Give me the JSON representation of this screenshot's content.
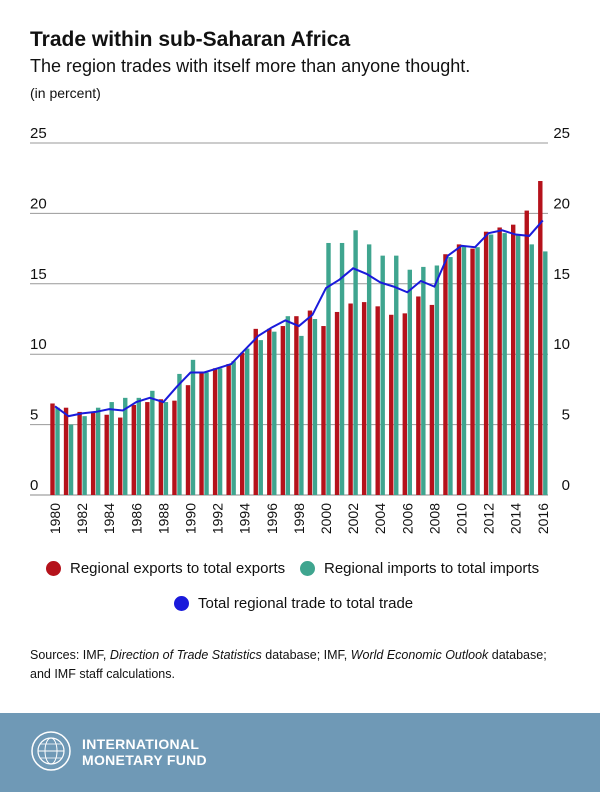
{
  "title": "Trade within sub-Saharan Africa",
  "subtitle": "The region trades with itself more than anyone thought.",
  "unit_note": "(in percent)",
  "legend": {
    "exports": "Regional exports to total exports",
    "imports": "Regional imports to total imports",
    "total": "Total regional trade to total trade"
  },
  "source": {
    "prefix": "Sources: IMF, ",
    "dots": "Direction of Trade Statistics",
    "mid": " database; IMF, ",
    "weo": "World Economic Outlook",
    "suffix": " database; and IMF staff calculations."
  },
  "footer": {
    "org_line1": "INTERNATIONAL",
    "org_line2": "MONETARY FUND",
    "background": "#6f99b6"
  },
  "colors": {
    "exports": "#b5121b",
    "imports": "#3fa58f",
    "total": "#1a1adb"
  },
  "chart_data": {
    "type": "bar",
    "x": [
      1980,
      1981,
      1982,
      1983,
      1984,
      1985,
      1986,
      1987,
      1988,
      1989,
      1990,
      1991,
      1992,
      1993,
      1994,
      1995,
      1996,
      1997,
      1998,
      1999,
      2000,
      2001,
      2002,
      2003,
      2004,
      2005,
      2006,
      2007,
      2008,
      2009,
      2010,
      2011,
      2012,
      2013,
      2014,
      2015,
      2016
    ],
    "x_tick_labels": [
      "1980",
      "1982",
      "1984",
      "1986",
      "1988",
      "1990",
      "1992",
      "1994",
      "1996",
      "1998",
      "2000",
      "2002",
      "2004",
      "2006",
      "2008",
      "2010",
      "2012",
      "2014",
      "2016"
    ],
    "y_ticks": [
      "0",
      "5",
      "10",
      "15",
      "20",
      "25"
    ],
    "ylim": [
      0,
      25
    ],
    "grid": true,
    "series": [
      {
        "name": "Regional exports to total exports",
        "type": "bar",
        "color": "#b5121b",
        "values": [
          6.5,
          6.2,
          5.9,
          5.9,
          5.7,
          5.5,
          6.4,
          6.6,
          6.8,
          6.7,
          7.8,
          8.7,
          9.0,
          9.3,
          10.1,
          11.8,
          11.8,
          12.0,
          12.7,
          13.1,
          12.0,
          13.0,
          13.6,
          13.7,
          13.4,
          12.8,
          12.9,
          14.1,
          13.5,
          17.1,
          17.8,
          17.5,
          18.7,
          19.0,
          19.2,
          20.2,
          22.3
        ]
      },
      {
        "name": "Regional imports to total imports",
        "type": "bar",
        "color": "#3fa58f",
        "values": [
          6.2,
          5.0,
          5.6,
          6.2,
          6.6,
          6.9,
          6.9,
          7.4,
          6.6,
          8.6,
          9.6,
          8.7,
          9.0,
          9.5,
          10.4,
          11.0,
          11.6,
          12.7,
          11.3,
          12.5,
          17.9,
          17.9,
          18.8,
          17.8,
          17.0,
          17.0,
          16.0,
          16.2,
          16.3,
          16.9,
          17.7,
          17.6,
          18.5,
          18.6,
          18.5,
          17.8,
          17.3
        ]
      },
      {
        "name": "Total regional trade to total trade",
        "type": "line",
        "color": "#1a1adb",
        "values": [
          6.3,
          5.6,
          5.8,
          5.9,
          6.1,
          6.0,
          6.6,
          6.9,
          6.6,
          7.7,
          8.7,
          8.7,
          9.0,
          9.3,
          10.3,
          11.3,
          11.9,
          12.4,
          12.0,
          12.8,
          14.7,
          15.3,
          16.1,
          15.7,
          15.1,
          14.8,
          14.4,
          15.2,
          14.8,
          17.0,
          17.7,
          17.6,
          18.6,
          18.8,
          18.5,
          18.4,
          19.5
        ]
      }
    ]
  }
}
